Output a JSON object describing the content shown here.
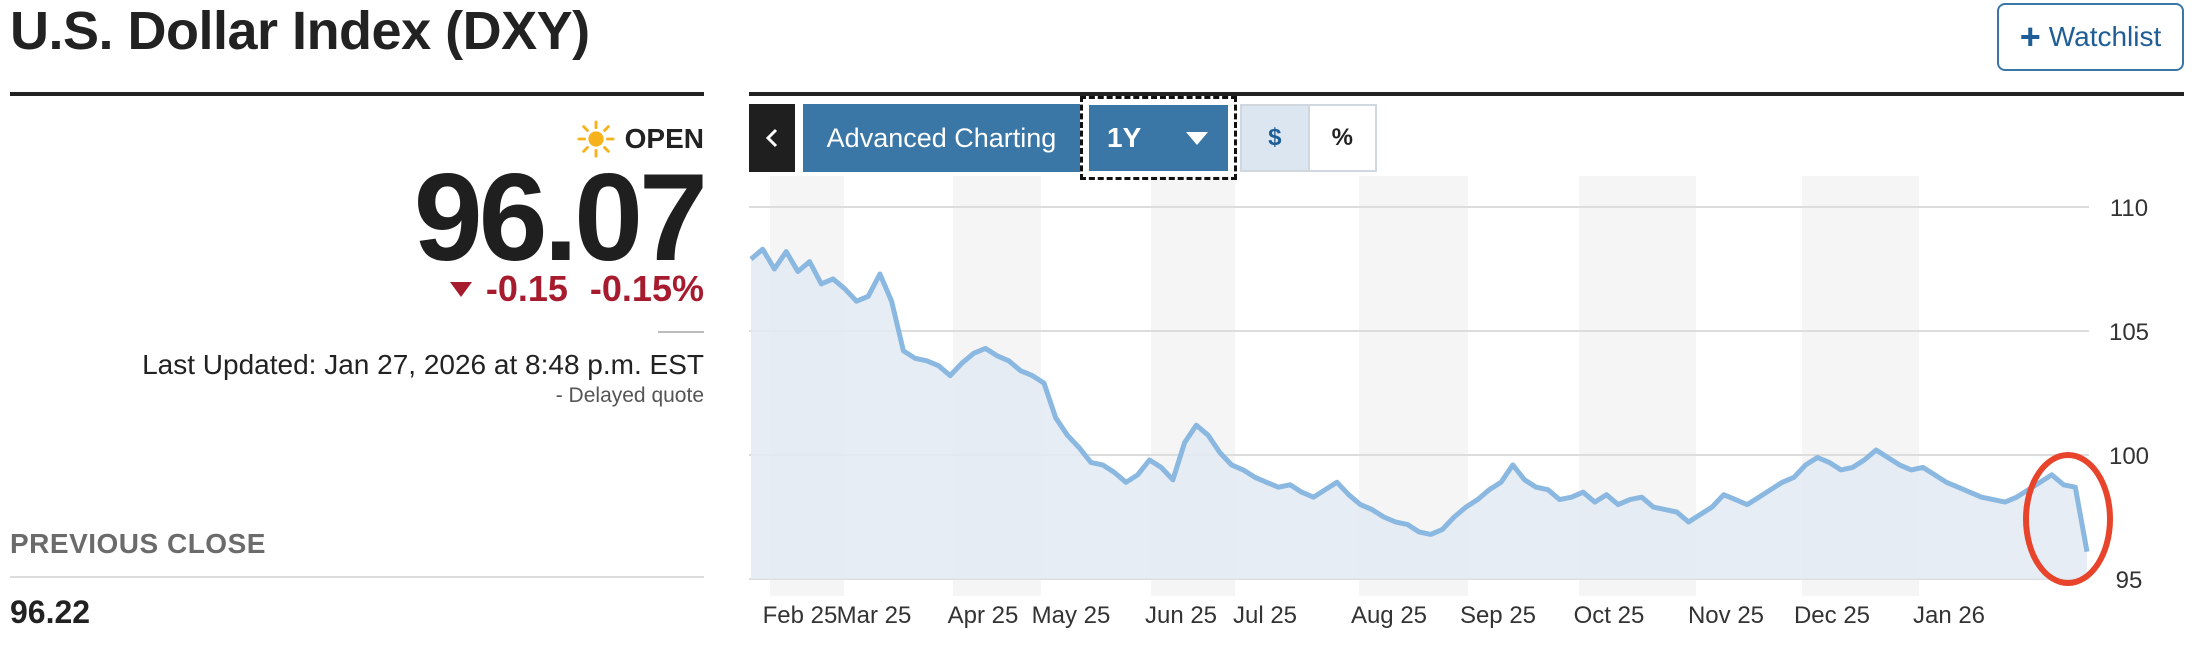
{
  "header": {
    "title": "U.S. Dollar Index (DXY)",
    "watchlist_label": "Watchlist",
    "watchlist_icon": "plus-icon"
  },
  "quote": {
    "status_icon": "sun-icon",
    "status": "OPEN",
    "price": "96.07",
    "change": "-0.15",
    "change_percent": "-0.15%",
    "change_color": "#a61c2e",
    "last_updated": "Last Updated: Jan 27, 2026 at 8:48 p.m. EST",
    "delayed": "-  Delayed quote",
    "previous_close_label": "PREVIOUS CLOSE",
    "previous_close": "96.22"
  },
  "toolbar": {
    "collapse_icon": "chevron-left-icon",
    "advanced_label": "Advanced Charting",
    "range_label": "1Y",
    "range_icon": "caret-down-icon",
    "currency_label": "$",
    "percent_label": "%",
    "accent_color": "#3b77a6"
  },
  "chart_data": {
    "type": "area",
    "line_color": "#8ab8e0",
    "fill_color": "#e3eaf3",
    "y_ticks": [
      "110",
      "105",
      "100",
      "95"
    ],
    "ylim": [
      95,
      110
    ],
    "x_labels": [
      "Feb 25",
      "Mar 25",
      "Apr 25",
      "May 25",
      "Jun 25",
      "Jul 25",
      "Aug 25",
      "Sep 25",
      "Oct 25",
      "Nov 25",
      "Dec 25",
      "Jan 26"
    ],
    "series": [
      {
        "values": [
          107.9,
          108.3,
          107.5,
          108.2,
          107.4,
          107.8,
          106.9,
          107.1,
          106.7,
          106.2,
          106.4,
          107.3,
          106.2,
          104.2,
          103.9,
          103.8,
          103.6,
          103.2,
          103.7,
          104.1,
          104.3,
          104.0,
          103.8,
          103.4,
          103.2,
          102.9,
          101.5,
          100.8,
          100.3,
          99.7,
          99.6,
          99.3,
          98.9,
          99.2,
          99.8,
          99.5,
          99.0,
          100.5,
          101.2,
          100.8,
          100.1,
          99.6,
          99.4,
          99.1,
          98.9,
          98.7,
          98.8,
          98.5,
          98.3,
          98.6,
          98.9,
          98.4,
          98.0,
          97.8,
          97.5,
          97.3,
          97.2,
          96.9,
          96.8,
          97.0,
          97.5,
          97.9,
          98.2,
          98.6,
          98.9,
          99.6,
          99.0,
          98.7,
          98.6,
          98.2,
          98.3,
          98.5,
          98.1,
          98.4,
          98.0,
          98.2,
          98.3,
          97.9,
          97.8,
          97.7,
          97.3,
          97.6,
          97.9,
          98.4,
          98.2,
          98.0,
          98.3,
          98.6,
          98.9,
          99.1,
          99.6,
          99.9,
          99.7,
          99.4,
          99.5,
          99.8,
          100.2,
          99.9,
          99.6,
          99.4,
          99.5,
          99.2,
          98.9,
          98.7,
          98.5,
          98.3,
          98.2,
          98.1,
          98.3,
          98.6,
          98.9,
          99.2,
          98.8,
          98.7,
          96.1
        ]
      }
    ]
  }
}
